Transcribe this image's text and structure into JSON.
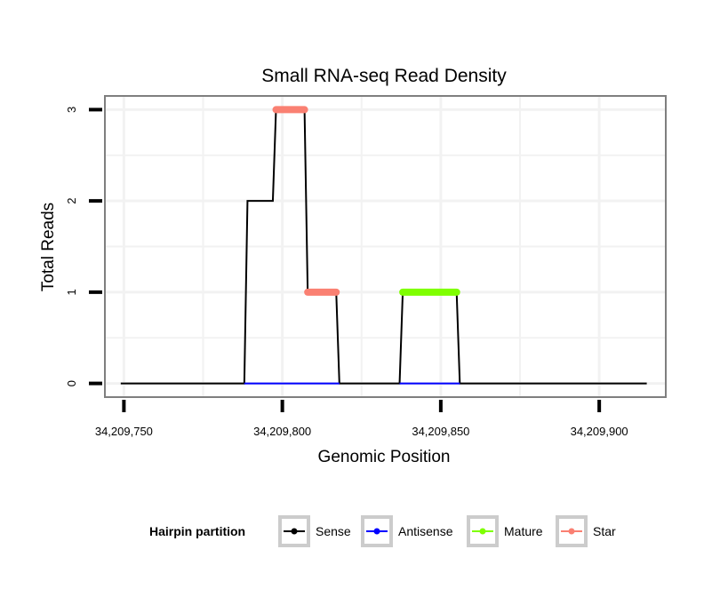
{
  "chart_data": {
    "type": "line",
    "title": "Small RNA-seq Read Density",
    "xlabel": "Genomic Position",
    "ylabel": "Total Reads",
    "xlim": [
      34209744,
      34209921
    ],
    "ylim": [
      -0.15,
      3.15
    ],
    "x_ticks": [
      34209750,
      34209800,
      34209850,
      34209900
    ],
    "x_tick_labels": [
      "34,209,750",
      "34,209,800",
      "34,209,850",
      "34,209,900"
    ],
    "y_ticks": [
      0,
      1,
      2,
      3
    ],
    "y_tick_labels": [
      "0",
      "1",
      "2",
      "3"
    ],
    "grid": true,
    "legend": {
      "title": "Hairpin partition",
      "position": "bottom",
      "entries": [
        "Sense",
        "Antisense",
        "Mature",
        "Star"
      ]
    },
    "series": [
      {
        "name": "Sense",
        "color": "#000000",
        "points": [
          [
            34209749,
            0
          ],
          [
            34209788,
            0
          ],
          [
            34209789,
            2
          ],
          [
            34209797,
            2
          ],
          [
            34209798,
            3
          ],
          [
            34209807,
            3
          ],
          [
            34209808,
            1
          ],
          [
            34209817,
            1
          ],
          [
            34209818,
            0
          ],
          [
            34209837,
            0
          ],
          [
            34209838,
            1
          ],
          [
            34209855,
            1
          ],
          [
            34209856,
            0
          ],
          [
            34209915,
            0
          ]
        ]
      },
      {
        "name": "Antisense",
        "color": "#0000ff",
        "points": [
          [
            34209788,
            0
          ],
          [
            34209818,
            0
          ],
          [
            34209837,
            0
          ],
          [
            34209856,
            0
          ]
        ]
      },
      {
        "name": "Mature",
        "color": "#7fff00",
        "points": [
          [
            34209838,
            1
          ],
          [
            34209855,
            1
          ]
        ]
      },
      {
        "name": "Star",
        "color": "#fa8072",
        "points": [
          [
            34209798,
            3
          ],
          [
            34209807,
            3
          ],
          [
            34209808,
            1
          ],
          [
            34209817,
            1
          ]
        ]
      }
    ]
  }
}
